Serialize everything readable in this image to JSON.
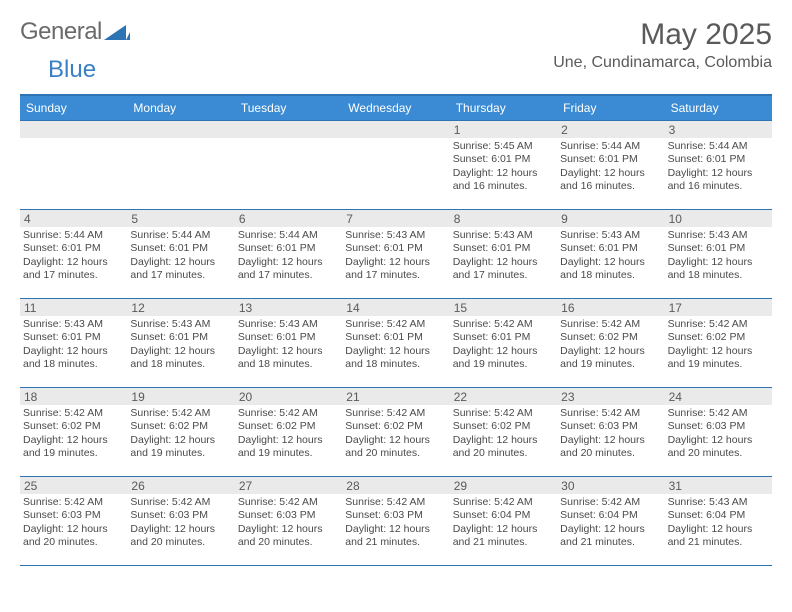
{
  "branding": {
    "word1": "General",
    "word2": "Blue",
    "triangle_color": "#2e74b5"
  },
  "title": "May 2025",
  "location": "Une, Cundinamarca, Colombia",
  "colors": {
    "header_bar": "#3b8bd4",
    "rule": "#2e74b5",
    "daynum_bg": "#eaeaea",
    "text": "#4a4a4a",
    "title_text": "#5a5a5a"
  },
  "day_names": [
    "Sunday",
    "Monday",
    "Tuesday",
    "Wednesday",
    "Thursday",
    "Friday",
    "Saturday"
  ],
  "weeks": [
    [
      {
        "n": "",
        "sr": "",
        "ss": "",
        "dl": ""
      },
      {
        "n": "",
        "sr": "",
        "ss": "",
        "dl": ""
      },
      {
        "n": "",
        "sr": "",
        "ss": "",
        "dl": ""
      },
      {
        "n": "",
        "sr": "",
        "ss": "",
        "dl": ""
      },
      {
        "n": "1",
        "sr": "Sunrise: 5:45 AM",
        "ss": "Sunset: 6:01 PM",
        "dl": "Daylight: 12 hours and 16 minutes."
      },
      {
        "n": "2",
        "sr": "Sunrise: 5:44 AM",
        "ss": "Sunset: 6:01 PM",
        "dl": "Daylight: 12 hours and 16 minutes."
      },
      {
        "n": "3",
        "sr": "Sunrise: 5:44 AM",
        "ss": "Sunset: 6:01 PM",
        "dl": "Daylight: 12 hours and 16 minutes."
      }
    ],
    [
      {
        "n": "4",
        "sr": "Sunrise: 5:44 AM",
        "ss": "Sunset: 6:01 PM",
        "dl": "Daylight: 12 hours and 17 minutes."
      },
      {
        "n": "5",
        "sr": "Sunrise: 5:44 AM",
        "ss": "Sunset: 6:01 PM",
        "dl": "Daylight: 12 hours and 17 minutes."
      },
      {
        "n": "6",
        "sr": "Sunrise: 5:44 AM",
        "ss": "Sunset: 6:01 PM",
        "dl": "Daylight: 12 hours and 17 minutes."
      },
      {
        "n": "7",
        "sr": "Sunrise: 5:43 AM",
        "ss": "Sunset: 6:01 PM",
        "dl": "Daylight: 12 hours and 17 minutes."
      },
      {
        "n": "8",
        "sr": "Sunrise: 5:43 AM",
        "ss": "Sunset: 6:01 PM",
        "dl": "Daylight: 12 hours and 17 minutes."
      },
      {
        "n": "9",
        "sr": "Sunrise: 5:43 AM",
        "ss": "Sunset: 6:01 PM",
        "dl": "Daylight: 12 hours and 18 minutes."
      },
      {
        "n": "10",
        "sr": "Sunrise: 5:43 AM",
        "ss": "Sunset: 6:01 PM",
        "dl": "Daylight: 12 hours and 18 minutes."
      }
    ],
    [
      {
        "n": "11",
        "sr": "Sunrise: 5:43 AM",
        "ss": "Sunset: 6:01 PM",
        "dl": "Daylight: 12 hours and 18 minutes."
      },
      {
        "n": "12",
        "sr": "Sunrise: 5:43 AM",
        "ss": "Sunset: 6:01 PM",
        "dl": "Daylight: 12 hours and 18 minutes."
      },
      {
        "n": "13",
        "sr": "Sunrise: 5:43 AM",
        "ss": "Sunset: 6:01 PM",
        "dl": "Daylight: 12 hours and 18 minutes."
      },
      {
        "n": "14",
        "sr": "Sunrise: 5:42 AM",
        "ss": "Sunset: 6:01 PM",
        "dl": "Daylight: 12 hours and 18 minutes."
      },
      {
        "n": "15",
        "sr": "Sunrise: 5:42 AM",
        "ss": "Sunset: 6:01 PM",
        "dl": "Daylight: 12 hours and 19 minutes."
      },
      {
        "n": "16",
        "sr": "Sunrise: 5:42 AM",
        "ss": "Sunset: 6:02 PM",
        "dl": "Daylight: 12 hours and 19 minutes."
      },
      {
        "n": "17",
        "sr": "Sunrise: 5:42 AM",
        "ss": "Sunset: 6:02 PM",
        "dl": "Daylight: 12 hours and 19 minutes."
      }
    ],
    [
      {
        "n": "18",
        "sr": "Sunrise: 5:42 AM",
        "ss": "Sunset: 6:02 PM",
        "dl": "Daylight: 12 hours and 19 minutes."
      },
      {
        "n": "19",
        "sr": "Sunrise: 5:42 AM",
        "ss": "Sunset: 6:02 PM",
        "dl": "Daylight: 12 hours and 19 minutes."
      },
      {
        "n": "20",
        "sr": "Sunrise: 5:42 AM",
        "ss": "Sunset: 6:02 PM",
        "dl": "Daylight: 12 hours and 19 minutes."
      },
      {
        "n": "21",
        "sr": "Sunrise: 5:42 AM",
        "ss": "Sunset: 6:02 PM",
        "dl": "Daylight: 12 hours and 20 minutes."
      },
      {
        "n": "22",
        "sr": "Sunrise: 5:42 AM",
        "ss": "Sunset: 6:02 PM",
        "dl": "Daylight: 12 hours and 20 minutes."
      },
      {
        "n": "23",
        "sr": "Sunrise: 5:42 AM",
        "ss": "Sunset: 6:03 PM",
        "dl": "Daylight: 12 hours and 20 minutes."
      },
      {
        "n": "24",
        "sr": "Sunrise: 5:42 AM",
        "ss": "Sunset: 6:03 PM",
        "dl": "Daylight: 12 hours and 20 minutes."
      }
    ],
    [
      {
        "n": "25",
        "sr": "Sunrise: 5:42 AM",
        "ss": "Sunset: 6:03 PM",
        "dl": "Daylight: 12 hours and 20 minutes."
      },
      {
        "n": "26",
        "sr": "Sunrise: 5:42 AM",
        "ss": "Sunset: 6:03 PM",
        "dl": "Daylight: 12 hours and 20 minutes."
      },
      {
        "n": "27",
        "sr": "Sunrise: 5:42 AM",
        "ss": "Sunset: 6:03 PM",
        "dl": "Daylight: 12 hours and 20 minutes."
      },
      {
        "n": "28",
        "sr": "Sunrise: 5:42 AM",
        "ss": "Sunset: 6:03 PM",
        "dl": "Daylight: 12 hours and 21 minutes."
      },
      {
        "n": "29",
        "sr": "Sunrise: 5:42 AM",
        "ss": "Sunset: 6:04 PM",
        "dl": "Daylight: 12 hours and 21 minutes."
      },
      {
        "n": "30",
        "sr": "Sunrise: 5:42 AM",
        "ss": "Sunset: 6:04 PM",
        "dl": "Daylight: 12 hours and 21 minutes."
      },
      {
        "n": "31",
        "sr": "Sunrise: 5:43 AM",
        "ss": "Sunset: 6:04 PM",
        "dl": "Daylight: 12 hours and 21 minutes."
      }
    ]
  ]
}
